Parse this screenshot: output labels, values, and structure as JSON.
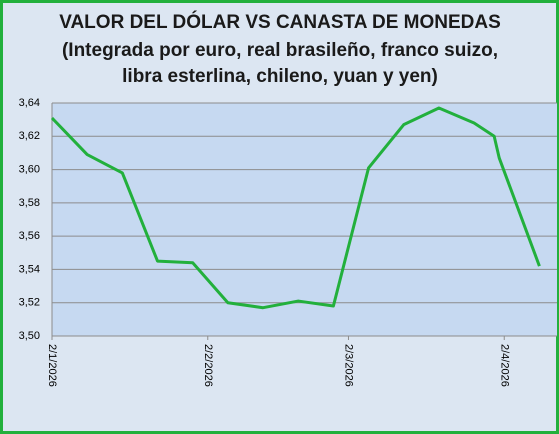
{
  "chart_data": {
    "type": "line",
    "title": "VALOR DEL DÓLAR VS CANASTA DE MONEDAS",
    "subtitle": [
      "(Integrada por euro, real brasileño, franco suizo,",
      "libra esterlina, chileno, yuan y yen)"
    ],
    "x": [
      0,
      7,
      14,
      21,
      28,
      35,
      42,
      49,
      56,
      63,
      70,
      77,
      84,
      88,
      89,
      97
    ],
    "series": [
      {
        "color": "#22b03c",
        "values": [
          3.631,
          3.609,
          3.598,
          3.545,
          3.544,
          3.52,
          3.517,
          3.521,
          3.518,
          3.601,
          3.627,
          3.637,
          3.628,
          3.62,
          3.607,
          3.542
        ]
      }
    ],
    "xlim": [
      0,
      100.5
    ],
    "xticks": [
      {
        "value": 0,
        "label": "2/1/2026"
      },
      {
        "value": 31,
        "label": "2/2/2026"
      },
      {
        "value": 59,
        "label": "2/3/2026"
      },
      {
        "value": 90,
        "label": "2/4/2026"
      }
    ],
    "ylim": [
      3.5,
      3.64
    ],
    "yticks": [
      {
        "value": 3.5,
        "label": "3,50"
      },
      {
        "value": 3.52,
        "label": "3,52"
      },
      {
        "value": 3.54,
        "label": "3,54"
      },
      {
        "value": 3.56,
        "label": "3,56"
      },
      {
        "value": 3.58,
        "label": "3,58"
      },
      {
        "value": 3.6,
        "label": "3,60"
      },
      {
        "value": 3.62,
        "label": "3,62"
      },
      {
        "value": 3.64,
        "label": "3,64"
      }
    ],
    "grid": true
  }
}
